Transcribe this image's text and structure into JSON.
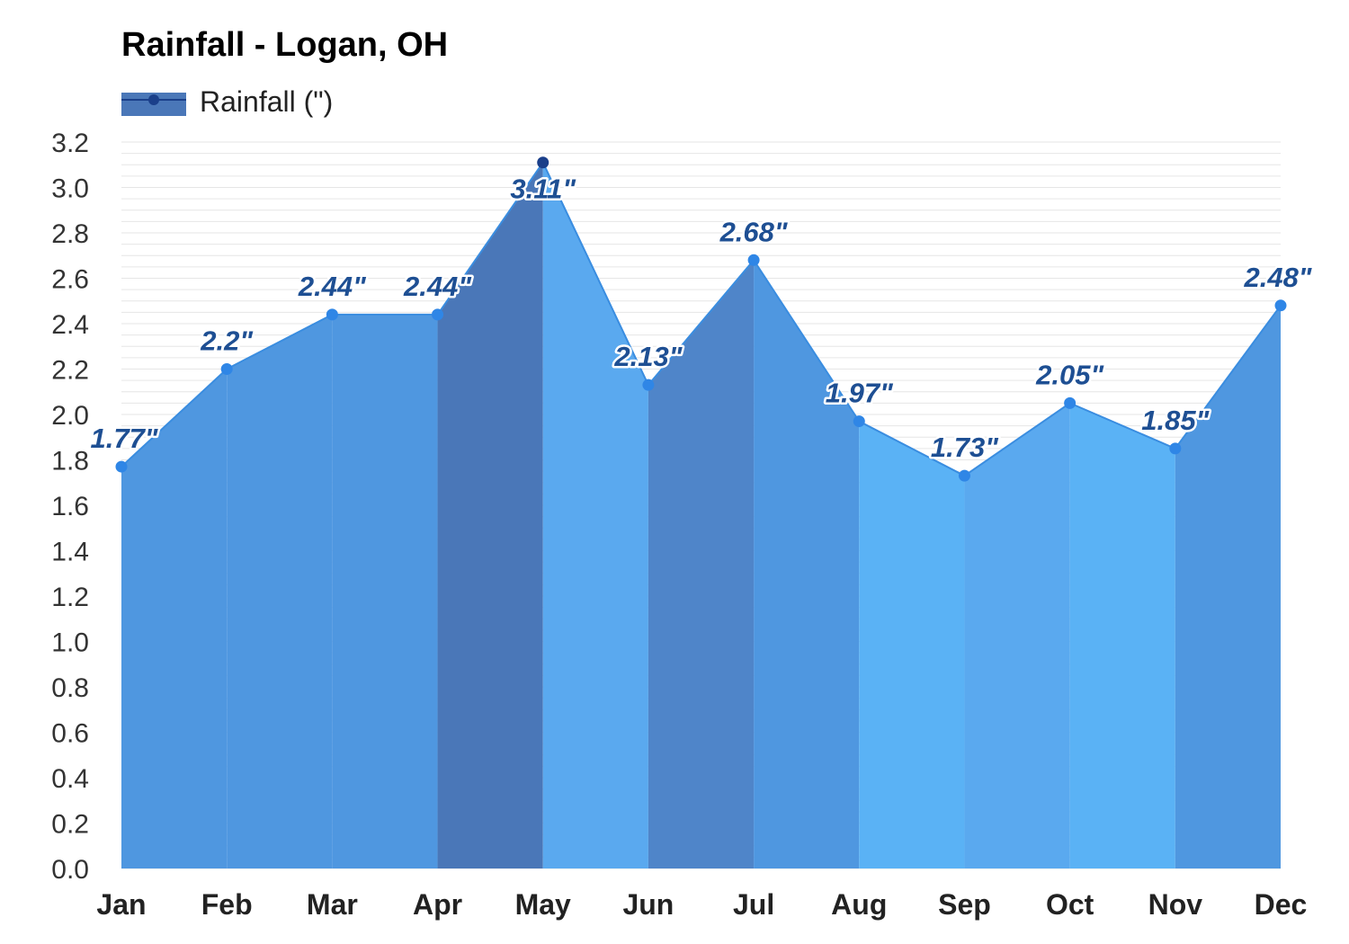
{
  "chart_data": {
    "type": "area",
    "title": "Rainfall - Logan, OH",
    "categories": [
      "Jan",
      "Feb",
      "Mar",
      "Apr",
      "May",
      "Jun",
      "Jul",
      "Aug",
      "Sep",
      "Oct",
      "Nov",
      "Dec"
    ],
    "series": [
      {
        "name": "Rainfall (\")",
        "values": [
          1.77,
          2.2,
          2.44,
          2.44,
          3.11,
          2.13,
          2.68,
          1.97,
          1.73,
          2.05,
          1.85,
          2.48
        ],
        "labels": [
          "1.77\"",
          "2.2\"",
          "2.44\"",
          "2.44\"",
          "3.11\"",
          "2.13\"",
          "2.68\"",
          "1.97\"",
          "1.73\"",
          "2.05\"",
          "1.85\"",
          "2.48\""
        ]
      }
    ],
    "ylim": [
      0,
      3.2
    ],
    "yticks": [
      "0.0",
      "0.2",
      "0.4",
      "0.6",
      "0.8",
      "1.0",
      "1.2",
      "1.4",
      "1.6",
      "1.8",
      "2.0",
      "2.2",
      "2.4",
      "2.6",
      "2.8",
      "3.0",
      "3.2"
    ],
    "xlabel": "",
    "ylabel": "",
    "legend_position": "top-left",
    "grid": true,
    "colors": {
      "segment_fills": [
        "#4f97e0",
        "#4f97e0",
        "#4f97e0",
        "#4a77b8",
        "#5aa9ef",
        "#4f85c9",
        "#4f97e0",
        "#5ab2f5",
        "#5aa9ef",
        "#5ab2f5",
        "#4f97e0",
        "#4f97e0"
      ],
      "line": "#3a8de0",
      "label_text": "#1e4f93",
      "legend_swatch": "#4a77b8",
      "legend_marker": "#1a3f8a"
    }
  }
}
